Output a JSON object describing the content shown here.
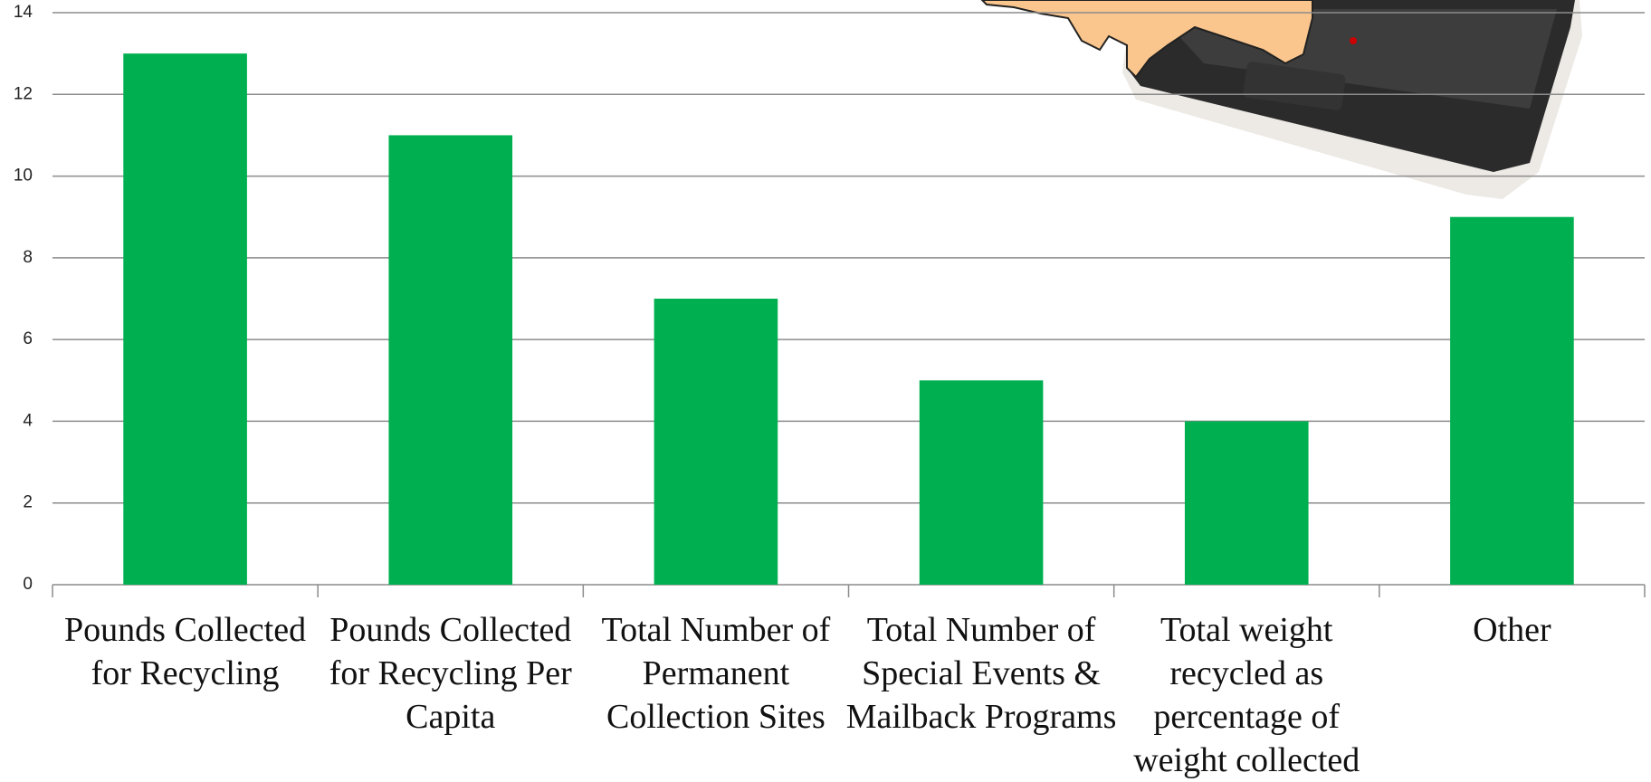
{
  "chart_data": {
    "type": "bar",
    "categories": [
      "Pounds Collected for Recycling",
      "Pounds Collected for Recycling Per Capita",
      "Total Number of Permanent Collection Sites",
      "Total Number of Special Events & Mailback Programs",
      "Total weight recycled as percentage of weight collected",
      "Other"
    ],
    "values": [
      13,
      11,
      7,
      5,
      4,
      9
    ],
    "color": "#00b050",
    "ylim": [
      0,
      14
    ],
    "yticks": [
      0,
      2,
      4,
      6,
      8,
      10,
      12,
      14
    ],
    "grid": true
  }
}
